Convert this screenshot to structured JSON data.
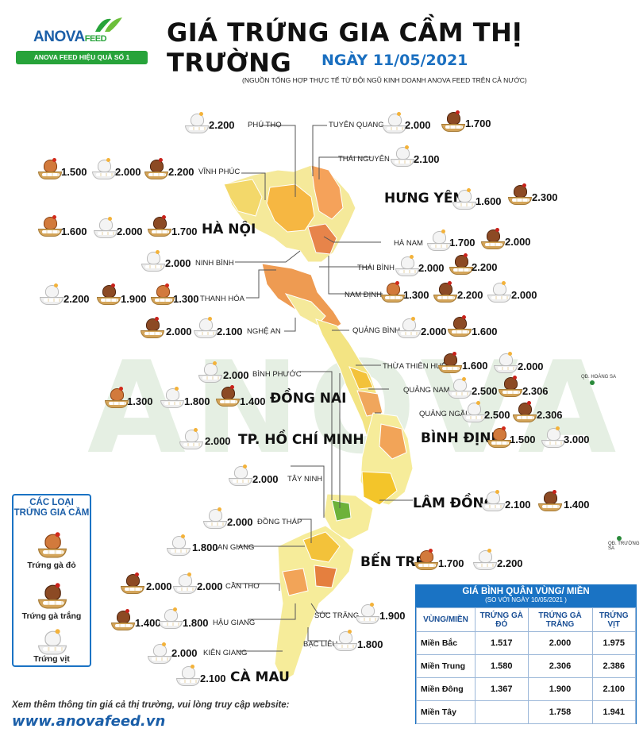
{
  "header": {
    "logo_brand": "ANOVA",
    "logo_brand_suffix": "FEED",
    "logo_slogan": "ANOVA FEED HIỆU QUẢ SỐ 1",
    "title": "GIÁ TRỨNG GIA CẦM THỊ TRƯỜNG",
    "date": "NGÀY 11/05/2021",
    "source": "(NGUỒN TỔNG HỢP THỰC TẾ TỪ ĐỘI NGŨ KINH DOANH ANOVA FEED TRÊN CẢ NƯỚC)"
  },
  "watermark": "ANOVA",
  "islands": {
    "hoang_sa": "QĐ. HOÀNG SA",
    "truong_sa": "QĐ. TRƯỜNG SA"
  },
  "provinces": {
    "phu_tho": {
      "name": "PHÚ THỌ",
      "duck": "2.200"
    },
    "tuyen_quang": {
      "name": "TUYÊN QUANG",
      "duck": "2.000",
      "white": "1.700"
    },
    "thai_nguyen": {
      "name": "THÁI NGUYÊN",
      "duck": "2.100"
    },
    "vinh_phuc": {
      "name": "VĨNH PHÚC",
      "red": "1.500",
      "duck": "2.000",
      "white": "2.200"
    },
    "hung_yen": {
      "name": "HƯNG YÊN",
      "duck": "1.600",
      "white": "2.300"
    },
    "ha_noi": {
      "name": "HÀ NỘI",
      "red": "1.600",
      "duck": "2.000",
      "white": "1.700"
    },
    "ha_nam": {
      "name": "HÀ NAM",
      "duck": "1.700",
      "white": "2.000"
    },
    "ninh_binh": {
      "name": "NINH BÌNH",
      "duck": "2.000"
    },
    "thai_binh": {
      "name": "THÁI BÌNH",
      "duck": "2.000",
      "white": "2.200"
    },
    "thanh_hoa": {
      "name": "THANH HÓA",
      "duck": "2.200",
      "white": "1.900",
      "red": "1.300"
    },
    "nam_dinh": {
      "name": "NAM ĐỊNH",
      "red": "1.300",
      "white": "2.200",
      "duck": "2.000"
    },
    "nghe_an": {
      "name": "NGHỆ AN",
      "white": "2.000",
      "duck": "2.100"
    },
    "quang_binh": {
      "name": "QUẢNG BÌNH",
      "duck": "2.000",
      "white": "1.600"
    },
    "thua_thien_hue": {
      "name": "THỪA THIÊN HUẾ",
      "white": "1.600",
      "duck": "2.000"
    },
    "binh_phuoc": {
      "name": "BÌNH PHƯỚC",
      "duck": "2.000"
    },
    "quang_nam": {
      "name": "QUẢNG NAM",
      "duck": "2.500",
      "white": "2.306"
    },
    "dong_nai": {
      "name": "ĐỒNG NAI",
      "red": "1.300",
      "duck": "1.800",
      "white": "1.400"
    },
    "quang_ngai": {
      "name": "QUẢNG NGÃI",
      "duck": "2.500",
      "white": "2.306"
    },
    "tp_hcm": {
      "name": "TP. HỒ CHÍ MINH",
      "duck": "2.000"
    },
    "binh_dinh": {
      "name": "BÌNH ĐỊNH",
      "red": "1.500",
      "duck": "3.000"
    },
    "tay_ninh": {
      "name": "TÂY NINH",
      "duck": "2.000"
    },
    "lam_dong": {
      "name": "LÂM ĐỒNG",
      "duck": "2.100",
      "white": "1.400"
    },
    "dong_thap": {
      "name": "ĐỒNG THÁP",
      "duck": "2.000"
    },
    "an_giang": {
      "name": "AN GIANG",
      "duck": "1.800"
    },
    "ben_tre": {
      "name": "BẾN TRE:",
      "red": "1.700",
      "duck": "2.200"
    },
    "can_tho": {
      "name": "CẦN THƠ",
      "white": "2.000",
      "duck": "2.000"
    },
    "hau_giang": {
      "name": "HẬU GIANG",
      "white": "1.400",
      "duck": "1.800"
    },
    "soc_trang": {
      "name": "SÓC TRĂNG",
      "duck": "1.900"
    },
    "kien_giang": {
      "name": "KIÊN GIANG",
      "duck": "2.000"
    },
    "bac_lieu": {
      "name": "BẠC LIÊU",
      "duck": "1.800"
    },
    "ca_mau": {
      "name": "CÀ MAU",
      "duck": "2.100"
    }
  },
  "legend": {
    "title_line1": "CÁC LOẠI",
    "title_line2": "TRỨNG GIA CẦM",
    "red": "Trứng gà đỏ",
    "white": "Trứng gà trắng",
    "duck": "Trứng vịt"
  },
  "region_table": {
    "title": "GIÁ BÌNH QUÂN VÙNG/ MIỀN",
    "subtitle": "(SO VỚI NGÀY   10/05/2021        )",
    "headers": [
      "VÙNG/MIỀN",
      "TRỨNG GÀ ĐỎ",
      "TRỨNG GÀ TRẮNG",
      "TRỨNG VỊT"
    ],
    "rows": [
      [
        "Miền Bắc",
        "1.517",
        "2.000",
        "1.975"
      ],
      [
        "Miền Trung",
        "1.580",
        "2.306",
        "2.386"
      ],
      [
        "Miền Đông",
        "1.367",
        "1.900",
        "2.100"
      ],
      [
        "Miền Tây",
        "",
        "1.758",
        "1.941"
      ]
    ]
  },
  "footer": {
    "note": "Xem thêm thông tin giá cả thị trường, vui lòng truy cập website:",
    "website": "www.anovafeed.vn"
  },
  "colors": {
    "brand_blue": "#1a73c4",
    "brand_green": "#27a33a"
  }
}
